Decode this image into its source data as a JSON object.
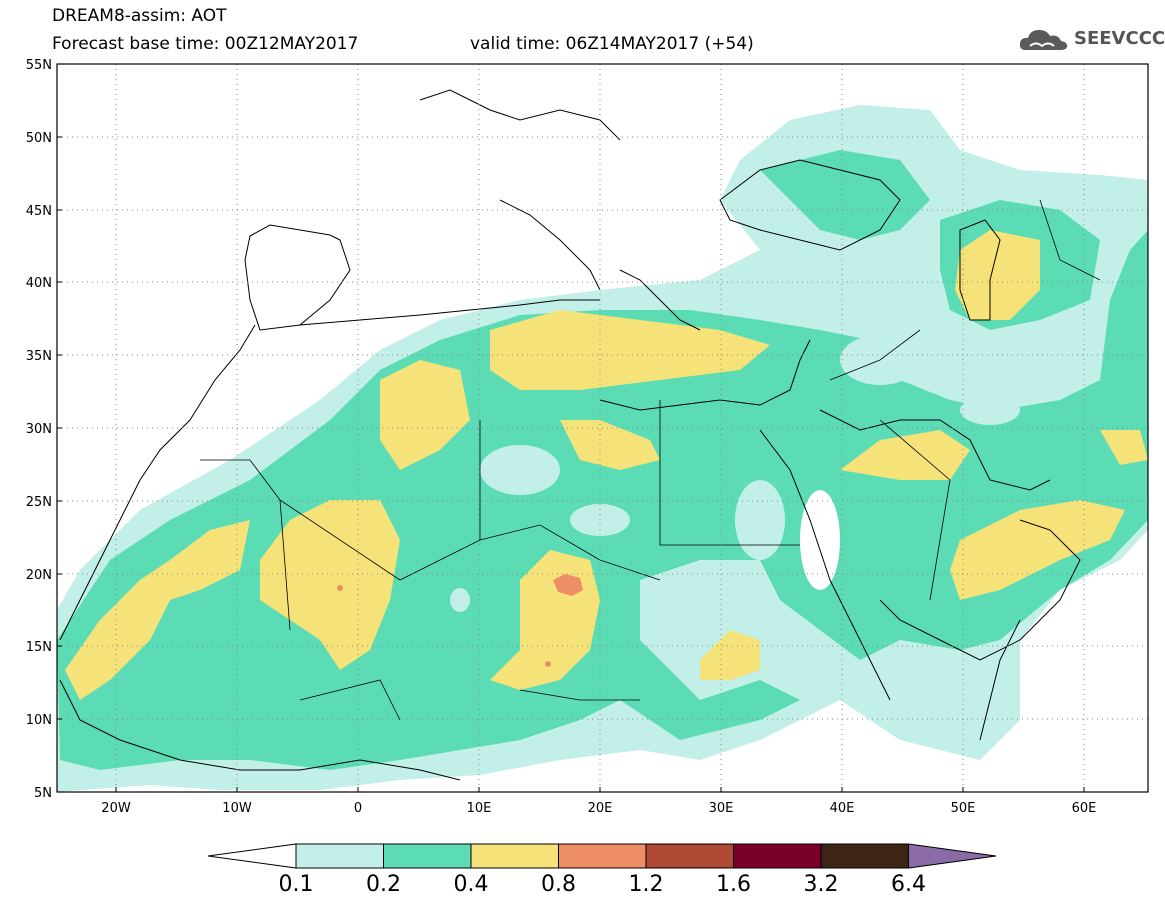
{
  "header": {
    "title_line1": "DREAM8-assim: AOT",
    "title_line2": "Forecast base time: 00Z12MAY2017",
    "valid_time": "valid time: 06Z14MAY2017 (+54)",
    "logo_text": "SEEVCCC",
    "logo_icon": "cloud-icon"
  },
  "map": {
    "lat_range": [
      5,
      55
    ],
    "lon_range": [
      -25,
      65
    ],
    "y_ticks": [
      "55N",
      "50N",
      "45N",
      "40N",
      "35N",
      "30N",
      "25N",
      "20N",
      "15N",
      "10N",
      "5N"
    ],
    "x_ticks": [
      "20W",
      "10W",
      "0",
      "10E",
      "20E",
      "30E",
      "40E",
      "50E",
      "60E"
    ],
    "grid": "dotted"
  },
  "colorbar": {
    "colors": [
      "#ffffff",
      "#c2efe7",
      "#5cdcb4",
      "#f5e37a",
      "#ee8e66",
      "#b04a35",
      "#7b0028",
      "#3d2414",
      "#8a6aa7"
    ],
    "labels": [
      "0.1",
      "0.2",
      "0.4",
      "0.8",
      "1.2",
      "1.6",
      "3.2",
      "6.4"
    ]
  }
}
